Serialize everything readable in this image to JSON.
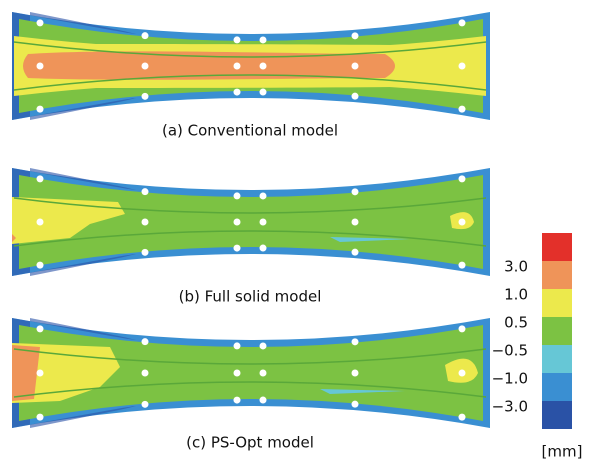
{
  "panels": [
    {
      "caption": "(a) Conventional model"
    },
    {
      "caption": "(b) Full solid model"
    },
    {
      "caption": "(c) PS-Opt model"
    }
  ],
  "legend": {
    "colors": [
      "#e3302a",
      "#ef9459",
      "#ece94c",
      "#7cc243",
      "#66c7d6",
      "#3a8fd2",
      "#2a52a6"
    ],
    "labels": [
      "3.0",
      "1.0",
      "0.5",
      "−0.5",
      "−1.0",
      "−3.0"
    ],
    "unit": "[mm]"
  }
}
